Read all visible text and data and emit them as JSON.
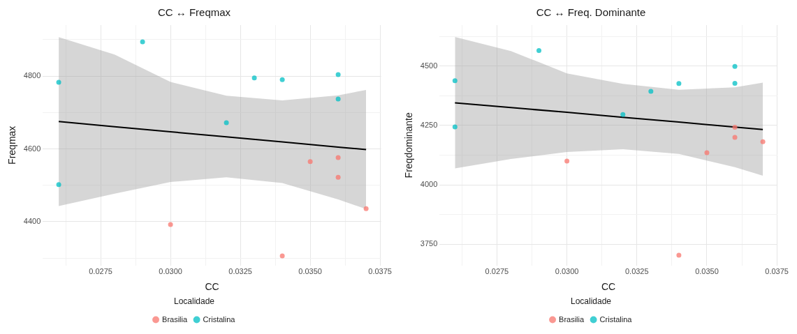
{
  "chart_data": [
    {
      "type": "scatter",
      "title": "CC ↔ Freqmax",
      "xlabel": "CC",
      "ylabel": "Freqmax",
      "legend_title": "Localidade",
      "legend": "bottom",
      "grid": true,
      "marker": "circle",
      "xlim": [
        0.02543,
        0.03754
      ],
      "ylim": [
        4280,
        4940
      ],
      "xticks": [
        {
          "value": 0.02625,
          "label": null
        },
        {
          "value": 0.0275,
          "label": "0.0275"
        },
        {
          "value": 0.02875,
          "label": null
        },
        {
          "value": 0.03,
          "label": "0.0300"
        },
        {
          "value": 0.03125,
          "label": null
        },
        {
          "value": 0.0325,
          "label": "0.0325"
        },
        {
          "value": 0.03375,
          "label": null
        },
        {
          "value": 0.035,
          "label": "0.0350"
        },
        {
          "value": 0.03625,
          "label": null
        },
        {
          "value": 0.0375,
          "label": "0.0375"
        }
      ],
      "yticks": [
        {
          "value": 4300,
          "label": null
        },
        4400,
        {
          "value": 4500,
          "label": null
        },
        4600,
        {
          "value": 4700,
          "label": null
        },
        4800,
        {
          "value": 4900,
          "label": null
        }
      ],
      "series": [
        {
          "name": "Brasilia",
          "color": "#f8766d",
          "x": [
            0.03,
            0.034,
            0.035,
            0.036,
            0.036,
            0.037
          ],
          "values": [
            4392,
            4306,
            4565,
            4576,
            4522,
            4436
          ]
        },
        {
          "name": "Cristalina",
          "color": "#00bfc4",
          "x": [
            0.026,
            0.026,
            0.029,
            0.032,
            0.033,
            0.034,
            0.036,
            0.036
          ],
          "values": [
            4783,
            4502,
            4894,
            4672,
            4795,
            4790,
            4804,
            4737
          ]
        },
        {
          "type": "line",
          "marker": "none",
          "color": "#000000",
          "x": [
            0.026,
            0.028,
            0.03,
            0.032,
            0.034,
            0.036,
            0.037
          ],
          "values": [
            4675,
            4661,
            4647,
            4633,
            4619,
            4605,
            4598
          ],
          "lower": [
            4443,
            4477,
            4509,
            4522,
            4506,
            4461,
            4435
          ],
          "upper": [
            4907,
            4859,
            4784,
            4746,
            4733,
            4747,
            4762
          ]
        }
      ]
    },
    {
      "type": "scatter",
      "title": "CC ↔ Freq. Dominante",
      "xlabel": "CC",
      "ylabel": "Freqdominante",
      "legend_title": "Localidade",
      "legend": "bottom",
      "grid": true,
      "marker": "circle",
      "xlim": [
        0.02545,
        0.03752
      ],
      "ylim": [
        3661,
        4672
      ],
      "xticks": [
        {
          "value": 0.02625,
          "label": null
        },
        {
          "value": 0.0275,
          "label": "0.0275"
        },
        {
          "value": 0.02875,
          "label": null
        },
        {
          "value": 0.03,
          "label": "0.0300"
        },
        {
          "value": 0.03125,
          "label": null
        },
        {
          "value": 0.0325,
          "label": "0.0325"
        },
        {
          "value": 0.03375,
          "label": null
        },
        {
          "value": 0.035,
          "label": "0.0350"
        },
        {
          "value": 0.03625,
          "label": null
        },
        {
          "value": 0.0375,
          "label": "0.0375"
        }
      ],
      "yticks": [
        3750,
        {
          "value": 3875,
          "label": null
        },
        4000,
        {
          "value": 4125,
          "label": null
        },
        4250,
        {
          "value": 4375,
          "label": null
        },
        4500,
        {
          "value": 4625,
          "label": null
        }
      ],
      "series": [
        {
          "name": "Brasilia",
          "color": "#f8766d",
          "x": [
            0.03,
            0.034,
            0.035,
            0.036,
            0.036,
            0.037
          ],
          "values": [
            4100,
            3704,
            4135,
            4242,
            4200,
            4181
          ]
        },
        {
          "name": "Cristalina",
          "color": "#00bfc4",
          "x": [
            0.026,
            0.026,
            0.029,
            0.032,
            0.033,
            0.034,
            0.036,
            0.036
          ],
          "values": [
            4438,
            4244,
            4565,
            4296,
            4393,
            4426,
            4498,
            4427
          ]
        },
        {
          "type": "line",
          "marker": "none",
          "color": "#000000",
          "x": [
            0.026,
            0.028,
            0.03,
            0.032,
            0.034,
            0.036,
            0.037
          ],
          "values": [
            4345,
            4325,
            4305,
            4284,
            4264,
            4243,
            4233
          ],
          "lower": [
            4069,
            4109,
            4138,
            4150,
            4130,
            4074,
            4038
          ],
          "upper": [
            4622,
            4563,
            4469,
            4425,
            4400,
            4410,
            4430
          ]
        }
      ]
    }
  ]
}
